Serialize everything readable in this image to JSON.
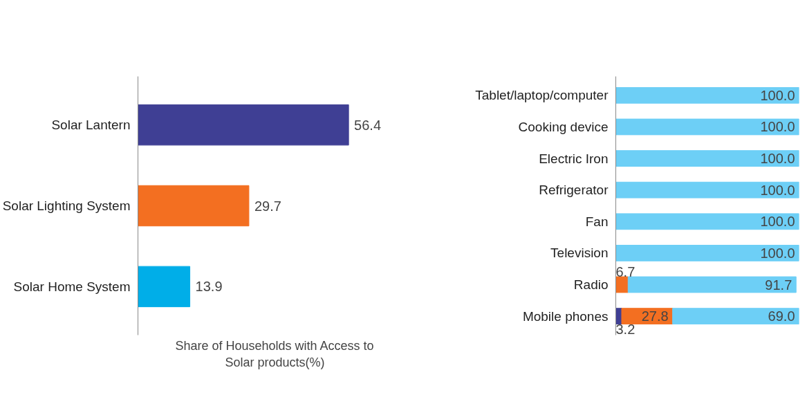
{
  "chart_data": [
    {
      "type": "bar",
      "orientation": "horizontal",
      "categories": [
        "Solar Lantern",
        "Solar Lighting System",
        "Solar Home System"
      ],
      "values": [
        56.4,
        29.7,
        13.9
      ],
      "colors": [
        "#3f3f94",
        "#f36f21",
        "#00aee8"
      ],
      "xlabel": "Share of Households with Access to Solar products(%)",
      "data_labels": true
    },
    {
      "type": "bar",
      "orientation": "horizontal",
      "stacked": true,
      "categories": [
        "Tablet/laptop/computer",
        "Cooking device",
        "Electric Iron",
        "Refrigerator",
        "Fan",
        "Television",
        "Radio",
        "Mobile phones"
      ],
      "series": [
        {
          "color": "#3f3f94",
          "values": [
            null,
            null,
            null,
            null,
            null,
            null,
            null,
            3.2
          ],
          "value_labels": [
            null,
            null,
            null,
            null,
            null,
            null,
            null,
            "3.2"
          ]
        },
        {
          "color": "#f36f21",
          "values": [
            null,
            null,
            null,
            null,
            null,
            null,
            6.7,
            27.8
          ],
          "value_labels": [
            null,
            null,
            null,
            null,
            null,
            null,
            "6.7",
            "27.8"
          ]
        },
        {
          "color": "#6dcff6",
          "values": [
            100.0,
            100.0,
            100.0,
            100.0,
            100.0,
            100.0,
            91.7,
            69.0
          ],
          "value_labels": [
            "100.0",
            "100.0",
            "100.0",
            "100.0",
            "100.0",
            "100.0",
            "91.7",
            "69.0"
          ]
        }
      ]
    }
  ]
}
